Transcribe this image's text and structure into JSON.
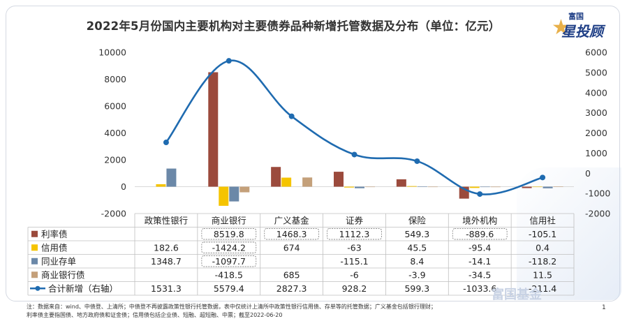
{
  "title": "2022年5月份国内主要机构对主要债券品种新增托管数据及分布（单位：亿元）",
  "logo": {
    "top": "富国",
    "main": "星投顾"
  },
  "watermark": "富国基金",
  "page_number": "1",
  "footnotes": [
    "注：数据来自：wind、中债登、上清所；中债登不再披露政策性银行托管数据，表中仅统计上清所中政策性银行信用债、存单等的托管数据；广义基金包括银行理财；",
    "利率债主要指国债、地方政府债和证金债；信用债包括企业债、短融、超短融、中票；截至2022-06-20"
  ],
  "colors": {
    "利率债": "#9b4a3c",
    "信用债": "#f5c400",
    "同业存单": "#6b88a8",
    "商业银行债": "#c4a07a",
    "line": "#1f6bb0"
  },
  "chart_data": {
    "type": "bar",
    "title": "2022年5月份国内主要机构对主要债券品种新增托管数据及分布（单位：亿元）",
    "categories": [
      "政策性银行",
      "商业银行",
      "广义基金",
      "证券",
      "保险",
      "境外机构",
      "信用社"
    ],
    "left_axis": {
      "ylim": [
        -2000,
        10000
      ],
      "ticks": [
        -2000,
        0,
        2000,
        4000,
        6000,
        8000,
        10000
      ]
    },
    "right_axis": {
      "ylim": [
        -2000,
        6000
      ],
      "ticks": [
        -2000,
        -1000,
        0,
        1000,
        2000,
        3000,
        4000,
        5000,
        6000
      ]
    },
    "series": [
      {
        "name": "利率债",
        "type": "bar",
        "values": [
          null,
          8519.8,
          1468.3,
          1112.3,
          549.3,
          -889.6,
          -105.1
        ],
        "labels": [
          "",
          "8519.8",
          "1468.3",
          "1112.3",
          "549.3",
          "-889.6",
          "-105.1"
        ]
      },
      {
        "name": "信用债",
        "type": "bar",
        "values": [
          182.6,
          -1424.2,
          674,
          -63,
          45.5,
          -95.4,
          0.4
        ],
        "labels": [
          "182.6",
          "-1424.2",
          "674",
          "-63",
          "45.5",
          "-95.4",
          "0.4"
        ]
      },
      {
        "name": "同业存单",
        "type": "bar",
        "values": [
          1348.7,
          -1097.7,
          null,
          -115.1,
          8.4,
          -14.1,
          -118.2
        ],
        "labels": [
          "1348.7",
          "-1097.7",
          "",
          "-115.1",
          "8.4",
          "-14.1",
          "-118.2"
        ]
      },
      {
        "name": "商业银行债",
        "type": "bar",
        "values": [
          null,
          -418.5,
          685,
          -6,
          -3.9,
          -34.5,
          11.5
        ],
        "labels": [
          "",
          "-418.5",
          "685",
          "-6",
          "-3.9",
          "-34.5",
          "11.5"
        ]
      },
      {
        "name": "合计新增（右轴）",
        "type": "line",
        "axis": "right",
        "values": [
          1531.3,
          5579.4,
          2827.3,
          928.2,
          599.3,
          -1033.6,
          -211.4
        ],
        "labels": [
          "1531.3",
          "5579.4",
          "2827.3",
          "928.2",
          "599.3",
          "-1033.6",
          "-211.4"
        ]
      }
    ],
    "boxed_cells": [
      [
        0,
        1
      ],
      [
        0,
        2
      ],
      [
        0,
        3
      ],
      [
        0,
        5
      ],
      [
        1,
        1
      ],
      [
        2,
        1
      ]
    ],
    "legend": "table-left"
  }
}
